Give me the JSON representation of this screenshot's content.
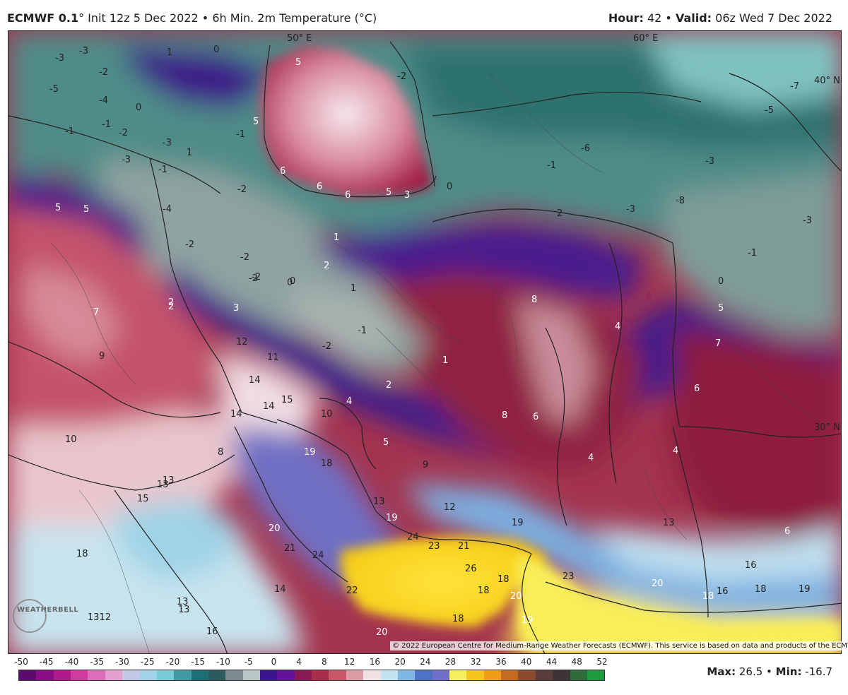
{
  "header": {
    "model": "ECMWF 0.1",
    "deg": "°",
    "init": " Init 12z 5 Dec 2022 • 6h Min. 2m Temperature (°C)",
    "hour_label": "Hour:",
    "hour_value": " 42 • ",
    "valid_label": "Valid:",
    "valid_value": " 06z Wed 7 Dec 2022"
  },
  "map": {
    "lon_labels": [
      "50° E",
      "60° E"
    ],
    "lat_labels": [
      "40° N",
      "30° N"
    ],
    "temperature_labels": [
      "-3",
      "-3",
      "-2",
      "1",
      "0",
      "-5",
      "-4",
      "-1",
      "0",
      "-2",
      "-3",
      "-1",
      "-1",
      "1",
      "-2",
      "-3",
      "-1",
      "5",
      "5",
      "6",
      "6",
      "6",
      "5",
      "3",
      "0",
      "-2",
      "-7",
      "-5",
      "-6",
      "-1",
      "-3",
      "-8",
      "-3",
      "-3",
      "2",
      "-1",
      "0",
      "5",
      "5",
      "-4",
      "-2",
      "-2",
      "-2",
      "0",
      "1",
      "2",
      "2",
      "1",
      "0",
      "-2",
      "-1",
      "-2",
      "1",
      "2",
      "4",
      "7",
      "9",
      "2",
      "3",
      "12",
      "11",
      "14",
      "15",
      "14",
      "14",
      "10",
      "8",
      "4",
      "4",
      "5",
      "7",
      "6",
      "10",
      "13",
      "19",
      "18",
      "5",
      "8",
      "6",
      "9",
      "4",
      "6",
      "13",
      "15",
      "12",
      "13",
      "19",
      "20",
      "21",
      "24",
      "24",
      "23",
      "21",
      "19",
      "23",
      "26",
      "22",
      "18",
      "18",
      "20",
      "19",
      "20",
      "18",
      "14",
      "13",
      "13",
      "1312",
      "16",
      "16",
      "18",
      "19",
      "20",
      "18",
      "16",
      "18",
      "13",
      "8"
    ],
    "copyright": "© 2022 European Centre for Medium-Range Weather Forecasts (ECMWF). This service is based on data and products of the ECMWF.",
    "logo_text": "WEATHERBELL"
  },
  "legend": {
    "ticks": [
      "-50",
      "-45",
      "-40",
      "-35",
      "-30",
      "-25",
      "-20",
      "-15",
      "-10",
      "-5",
      "0",
      "4",
      "8",
      "12",
      "16",
      "20",
      "24",
      "28",
      "32",
      "36",
      "40",
      "44",
      "48",
      "52"
    ],
    "colors": [
      "#5b0a6e",
      "#8a0c86",
      "#b01a8c",
      "#cf3b9e",
      "#dc6db8",
      "#e5a0cf",
      "#c3c8e6",
      "#9fd3ea",
      "#79cbd6",
      "#3f9aa6",
      "#1c6f74",
      "#2b5b5f",
      "#7c8c8e",
      "#b9c6c6",
      "#3a1491",
      "#63139a",
      "#881a55",
      "#a82d4a",
      "#c6586a",
      "#dc9ca3",
      "#f1e0e2",
      "#c4e3f2",
      "#7fb7e4",
      "#4e72c4",
      "#6f6fc8",
      "#f7f061",
      "#f4c51c",
      "#ef9d1a",
      "#c56b1f",
      "#8b4b2c",
      "#5b3c3c",
      "#3d3535",
      "#2d6d3b",
      "#1f9a3e"
    ]
  },
  "footer": {
    "max_label": "Max:",
    "max_value": " 26.5 • ",
    "min_label": "Min:",
    "min_value": " -16.7"
  }
}
